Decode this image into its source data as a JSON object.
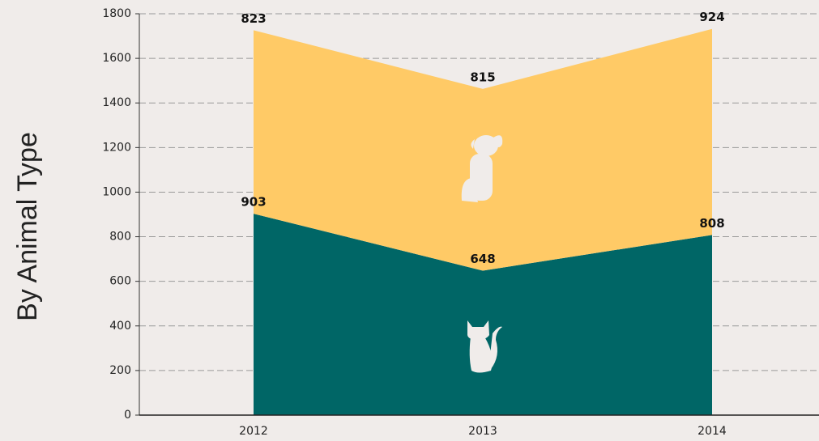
{
  "chart_data": {
    "type": "area",
    "stacked": true,
    "title": "By Animal Type",
    "categories": [
      "2012",
      "2013",
      "2014"
    ],
    "series": [
      {
        "name": "Cats",
        "color": "#006666",
        "values": [
          903,
          648,
          808
        ]
      },
      {
        "name": "Dogs",
        "color": "#ffca66",
        "values": [
          823,
          815,
          924
        ]
      }
    ],
    "ylim": [
      0,
      1800
    ],
    "yticks": [
      0,
      200,
      400,
      600,
      800,
      1000,
      1200,
      1400,
      1600,
      1800
    ],
    "grid": true
  }
}
